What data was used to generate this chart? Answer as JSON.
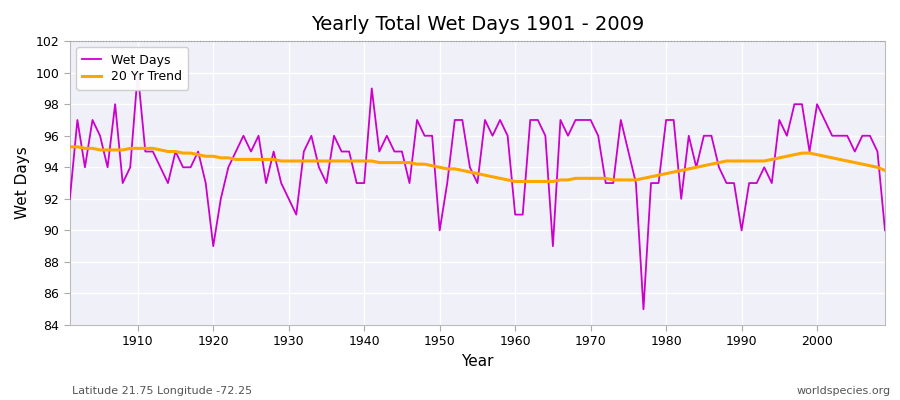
{
  "title": "Yearly Total Wet Days 1901 - 2009",
  "xlabel": "Year",
  "ylabel": "Wet Days",
  "subtitle_lat": "Latitude 21.75 Longitude -72.25",
  "watermark": "worldspecies.org",
  "ylim": [
    84,
    102
  ],
  "yticks": [
    84,
    86,
    88,
    90,
    92,
    94,
    96,
    98,
    100,
    102
  ],
  "wet_days_color": "#cc00cc",
  "trend_color": "#FFA500",
  "bg_color": "#ffffff",
  "plot_bg_color": "#f0f0f8",
  "legend_wet": "Wet Days",
  "legend_trend": "20 Yr Trend",
  "years": [
    1901,
    1902,
    1903,
    1904,
    1905,
    1906,
    1907,
    1908,
    1909,
    1910,
    1911,
    1912,
    1913,
    1914,
    1915,
    1916,
    1917,
    1918,
    1919,
    1920,
    1921,
    1922,
    1923,
    1924,
    1925,
    1926,
    1927,
    1928,
    1929,
    1930,
    1931,
    1932,
    1933,
    1934,
    1935,
    1936,
    1937,
    1938,
    1939,
    1940,
    1941,
    1942,
    1943,
    1944,
    1945,
    1946,
    1947,
    1948,
    1949,
    1950,
    1951,
    1952,
    1953,
    1954,
    1955,
    1956,
    1957,
    1958,
    1959,
    1960,
    1961,
    1962,
    1963,
    1964,
    1965,
    1966,
    1967,
    1968,
    1969,
    1970,
    1971,
    1972,
    1973,
    1974,
    1975,
    1976,
    1977,
    1978,
    1979,
    1980,
    1981,
    1982,
    1983,
    1984,
    1985,
    1986,
    1987,
    1988,
    1989,
    1990,
    1991,
    1992,
    1993,
    1994,
    1995,
    1996,
    1997,
    1998,
    1999,
    2000,
    2001,
    2002,
    2003,
    2004,
    2005,
    2006,
    2007,
    2008,
    2009
  ],
  "wet_days": [
    92,
    97,
    94,
    97,
    96,
    94,
    98,
    93,
    94,
    100,
    95,
    95,
    94,
    93,
    95,
    94,
    94,
    95,
    93,
    89,
    92,
    94,
    95,
    96,
    95,
    96,
    93,
    95,
    93,
    92,
    91,
    95,
    96,
    94,
    93,
    96,
    95,
    95,
    93,
    93,
    99,
    95,
    96,
    95,
    95,
    93,
    97,
    96,
    96,
    90,
    93,
    97,
    97,
    94,
    93,
    97,
    96,
    97,
    96,
    91,
    91,
    97,
    97,
    96,
    89,
    97,
    96,
    97,
    97,
    97,
    96,
    93,
    93,
    97,
    95,
    93,
    85,
    93,
    93,
    97,
    97,
    92,
    96,
    94,
    96,
    96,
    94,
    93,
    93,
    90,
    93,
    93,
    94,
    93,
    97,
    96,
    98,
    98,
    95,
    98,
    97,
    96,
    96,
    96,
    95,
    96,
    96,
    95,
    90
  ],
  "trend": [
    95.3,
    95.3,
    95.2,
    95.2,
    95.1,
    95.1,
    95.1,
    95.1,
    95.2,
    95.2,
    95.2,
    95.2,
    95.1,
    95.0,
    95.0,
    94.9,
    94.9,
    94.8,
    94.7,
    94.7,
    94.6,
    94.6,
    94.5,
    94.5,
    94.5,
    94.5,
    94.5,
    94.5,
    94.4,
    94.4,
    94.4,
    94.4,
    94.4,
    94.4,
    94.4,
    94.4,
    94.4,
    94.4,
    94.4,
    94.4,
    94.4,
    94.3,
    94.3,
    94.3,
    94.3,
    94.3,
    94.2,
    94.2,
    94.1,
    94.0,
    93.9,
    93.9,
    93.8,
    93.7,
    93.6,
    93.5,
    93.4,
    93.3,
    93.2,
    93.1,
    93.1,
    93.1,
    93.1,
    93.1,
    93.1,
    93.2,
    93.2,
    93.3,
    93.3,
    93.3,
    93.3,
    93.3,
    93.2,
    93.2,
    93.2,
    93.2,
    93.3,
    93.4,
    93.5,
    93.6,
    93.7,
    93.8,
    93.9,
    94.0,
    94.1,
    94.2,
    94.3,
    94.4,
    94.4,
    94.4,
    94.4,
    94.4,
    94.4,
    94.5,
    94.6,
    94.7,
    94.8,
    94.9,
    94.9,
    94.8,
    94.7,
    94.6,
    94.5,
    94.4,
    94.3,
    94.2,
    94.1,
    94.0,
    93.8
  ]
}
